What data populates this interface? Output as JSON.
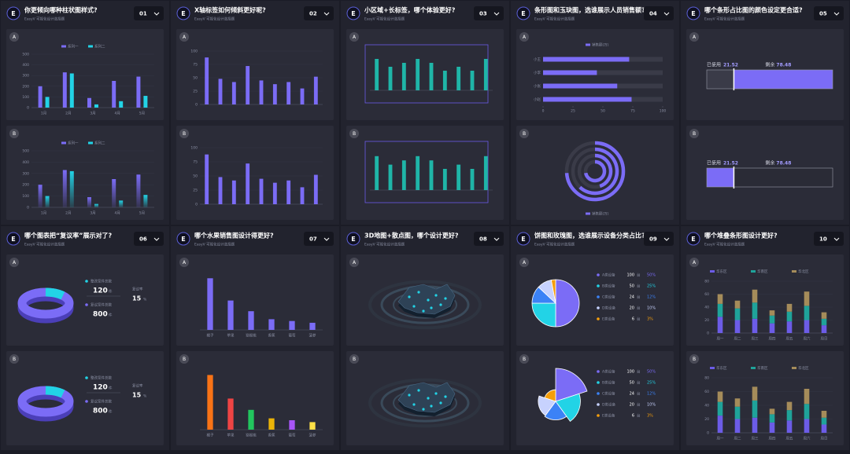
{
  "brand_mark": "E",
  "subtitle": "EasyV 可视化设计选择题",
  "cards": [
    {
      "title": "你更倾向哪种柱状图样式?",
      "number": "01",
      "panels": [
        {
          "label": "A",
          "chart": {
            "type": "grouped-bar",
            "categories": [
              "1月",
              "2月",
              "3月",
              "4月",
              "5月"
            ],
            "ylim": [
              0,
              500
            ],
            "yticks": [
              0,
              100,
              200,
              300,
              400,
              500
            ],
            "grid": true,
            "series": [
              {
                "name": "系列一",
                "color": "#7b6cf6",
                "values": [
                  200,
                  330,
                  90,
                  250,
                  290
                ]
              },
              {
                "name": "系列二",
                "color": "#22d3e6",
                "values": [
                  100,
                  320,
                  30,
                  60,
                  110
                ]
              }
            ]
          }
        },
        {
          "label": "B",
          "chart": {
            "type": "grouped-bar",
            "gradient": true,
            "categories": [
              "1月",
              "2月",
              "3月",
              "4月",
              "5月"
            ],
            "ylim": [
              0,
              500
            ],
            "yticks": [
              0,
              100,
              200,
              300,
              400,
              500
            ],
            "grid": true,
            "series": [
              {
                "name": "系列一",
                "color": "#7b6cf6",
                "values": [
                  200,
                  330,
                  90,
                  250,
                  290
                ]
              },
              {
                "name": "系列二",
                "color": "#22d3e6",
                "values": [
                  100,
                  320,
                  30,
                  60,
                  110
                ]
              }
            ]
          }
        }
      ]
    },
    {
      "title": "X轴标签如何倾斜更好呢?",
      "number": "02",
      "panels": [
        {
          "label": "A",
          "chart": {
            "type": "bar",
            "color": "#7b6cf6",
            "ylim": [
              0,
              100
            ],
            "yticks": [
              0,
              25,
              50,
              75,
              100
            ],
            "grid": true,
            "values": [
              88,
              48,
              42,
              72,
              45,
              38,
              42,
              30,
              52
            ]
          }
        },
        {
          "label": "B",
          "chart": {
            "type": "bar",
            "color": "#7b6cf6",
            "ylim": [
              0,
              100
            ],
            "yticks": [
              0,
              25,
              50,
              75,
              100
            ],
            "grid": true,
            "values": [
              88,
              48,
              42,
              72,
              45,
              38,
              42,
              30,
              52
            ]
          }
        }
      ]
    },
    {
      "title": "小区域+长标签，哪个体验更好?",
      "number": "03",
      "panels": [
        {
          "label": "A",
          "chart": {
            "type": "bar",
            "frame": true,
            "color": "#1fb5a8",
            "ylim": [
              0,
              10
            ],
            "values": [
              8,
              6,
              7,
              8,
              7,
              5,
              6,
              5,
              8
            ]
          }
        },
        {
          "label": "B",
          "chart": {
            "type": "bar",
            "frame": true,
            "color": "#1fb5a8",
            "ylim": [
              0,
              10
            ],
            "values": [
              8,
              6,
              7,
              8,
              7,
              5,
              6,
              5,
              8
            ]
          }
        }
      ]
    },
    {
      "title": "条形图和玉玦图，选谁展示人员销售额?",
      "number": "04",
      "panels": [
        {
          "label": "A",
          "chart": {
            "type": "hbar",
            "legend": "销售额(万)",
            "color": "#7b6cf6",
            "categories": [
              "小王",
              "小李",
              "小张",
              "小赵"
            ],
            "values": [
              72,
              45,
              62,
              74
            ],
            "xlim": [
              0,
              100
            ],
            "xticks": [
              0,
              25,
              50,
              75,
              100
            ]
          }
        },
        {
          "label": "B",
          "chart": {
            "type": "radial",
            "legend": "销售额(万)",
            "color": "#7b6cf6",
            "values": [
              72,
              45,
              62,
              74
            ],
            "xlim": [
              0,
              100
            ]
          }
        }
      ]
    },
    {
      "title": "哪个条形占比图的颜色设定更合适?",
      "number": "05",
      "panels": [
        {
          "label": "A",
          "chart": {
            "type": "progress",
            "used": {
              "label": "已使用",
              "value": 21.52,
              "color": "#3a3b48"
            },
            "remaining": {
              "label": "剩余",
              "value": 78.48,
              "color": "#7b6cf6"
            }
          }
        },
        {
          "label": "B",
          "chart": {
            "type": "progress",
            "used": {
              "label": "已使用",
              "value": 21.52,
              "color": "#7b6cf6"
            },
            "remaining": {
              "label": "剩余",
              "value": 78.48,
              "color": "#2a2b36"
            }
          }
        }
      ]
    },
    {
      "title": "哪个图表把“复议率”展示对了?",
      "number": "06",
      "panels": [
        {
          "label": "A",
          "chart": {
            "type": "donut-stat",
            "items": [
              {
                "name": "整改案件总数",
                "value": 120,
                "unit": "件",
                "color": "#22d3e6"
              },
              {
                "name": "复议案件总数",
                "value": 800,
                "unit": "件",
                "color": "#7b6cf6"
              }
            ],
            "rate": {
              "name": "复议率",
              "value": 15,
              "unit": "%"
            }
          }
        },
        {
          "label": "B",
          "chart": {
            "type": "donut-stat",
            "items": [
              {
                "name": "整改案件总数",
                "value": 120,
                "unit": "件",
                "color": "#22d3e6"
              },
              {
                "name": "复议案件总数",
                "value": 800,
                "unit": "件",
                "color": "#7b6cf6"
              }
            ],
            "rate": {
              "name": "复议率",
              "value": 15,
              "unit": "%"
            }
          }
        }
      ]
    },
    {
      "title": "哪个水果销售图设计得更好?",
      "number": "07",
      "panels": [
        {
          "label": "A",
          "chart": {
            "type": "bar",
            "color": "#7b6cf6",
            "ylim": [
              0,
              60
            ],
            "categories": [
              "橘子",
              "苹果",
              "猕猴桃",
              "香蕉",
              "葡萄",
              "菠萝"
            ],
            "values": [
              58,
              33,
              21,
              12,
              10,
              8
            ]
          }
        },
        {
          "label": "B",
          "chart": {
            "type": "bar",
            "colors": [
              "#f97316",
              "#ef4444",
              "#22c55e",
              "#eab308",
              "#a855f7",
              "#fde047"
            ],
            "ylim": [
              0,
              60
            ],
            "categories": [
              "橘子",
              "苹果",
              "猕猴桃",
              "香蕉",
              "葡萄",
              "菠萝"
            ],
            "values": [
              58,
              33,
              21,
              12,
              10,
              8
            ]
          }
        }
      ]
    },
    {
      "title": "3D地图+散点图，哪个设计更好?",
      "number": "08",
      "panels": [
        {
          "label": "A",
          "chart": {
            "type": "map"
          }
        },
        {
          "label": "B",
          "chart": {
            "type": "map"
          }
        }
      ]
    },
    {
      "title": "饼图和玫瑰图，选谁展示设备分类占比?",
      "number": "09",
      "panels": [
        {
          "label": "A",
          "chart": {
            "type": "pie",
            "unit": "台",
            "categories": [
              "A类设备",
              "B类设备",
              "C类设备",
              "D类设备",
              "E类设备"
            ],
            "values": [
              100,
              50,
              24,
              20,
              6
            ],
            "percent_labels": [
              "50%",
              "25%",
              "12%",
              "10%",
              "3%"
            ],
            "colors": [
              "#7b6cf6",
              "#22d3e6",
              "#3b82f6",
              "#c7d2fe",
              "#f59e0b"
            ]
          }
        },
        {
          "label": "B",
          "chart": {
            "type": "rose",
            "unit": "台",
            "categories": [
              "A类设备",
              "B类设备",
              "C类设备",
              "D类设备",
              "E类设备"
            ],
            "values": [
              100,
              50,
              24,
              20,
              6
            ],
            "percent_labels": [
              "50%",
              "25%",
              "12%",
              "10%",
              "3%"
            ],
            "colors": [
              "#7b6cf6",
              "#22d3e6",
              "#3b82f6",
              "#c7d2fe",
              "#f59e0b"
            ]
          }
        }
      ]
    },
    {
      "title": "哪个堆叠条形图设计更好?",
      "number": "10",
      "panels": [
        {
          "label": "A",
          "chart": {
            "type": "stacked",
            "categories": [
              "周一",
              "周二",
              "周三",
              "周四",
              "周五",
              "周六",
              "周日"
            ],
            "ylim": [
              0,
              80
            ],
            "yticks": [
              0,
              20,
              40,
              60,
              80
            ],
            "grid": true,
            "series": [
              {
                "name": "华东区",
                "color": "#6c5ce7",
                "values": [
                  25,
                  20,
                  22,
                  15,
                  18,
                  20,
                  12
                ]
              },
              {
                "name": "华南区",
                "color": "#1fa39a",
                "values": [
                  20,
                  18,
                  25,
                  12,
                  15,
                  22,
                  10
                ]
              },
              {
                "name": "华北区",
                "color": "#a58c5a",
                "values": [
                  15,
                  12,
                  20,
                  8,
                  12,
                  22,
                  10
                ]
              }
            ]
          }
        },
        {
          "label": "B",
          "chart": {
            "type": "stacked",
            "categories": [
              "周一",
              "周二",
              "周三",
              "周四",
              "周五",
              "周六",
              "周日"
            ],
            "ylim": [
              0,
              80
            ],
            "yticks": [
              0,
              20,
              40,
              60,
              80
            ],
            "grid": true,
            "series": [
              {
                "name": "华东区",
                "color": "#6c5ce7",
                "values": [
                  25,
                  20,
                  22,
                  15,
                  18,
                  20,
                  12
                ]
              },
              {
                "name": "华南区",
                "color": "#1fa39a",
                "values": [
                  20,
                  18,
                  25,
                  12,
                  15,
                  22,
                  10
                ]
              },
              {
                "name": "华北区",
                "color": "#a58c5a",
                "values": [
                  15,
                  12,
                  20,
                  8,
                  12,
                  22,
                  10
                ]
              }
            ]
          }
        }
      ]
    }
  ]
}
